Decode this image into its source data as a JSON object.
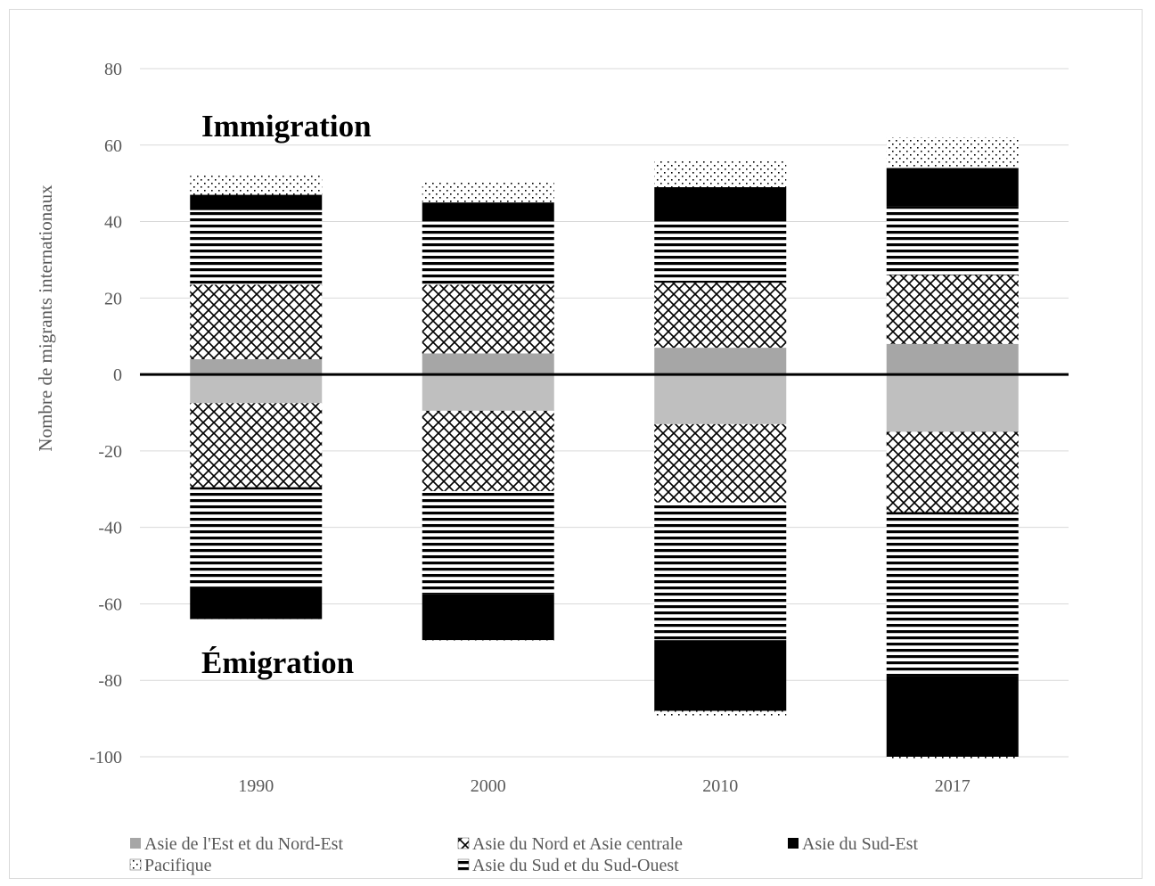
{
  "chart_data": {
    "type": "bar",
    "stacked": true,
    "categories": [
      "1990",
      "2000",
      "2010",
      "2017"
    ],
    "ylabel": "Nombre de migrants internationaux",
    "ylim": [
      -100,
      80
    ],
    "yticks": [
      80,
      60,
      40,
      20,
      0,
      -20,
      -40,
      -60,
      -80,
      -100
    ],
    "grid": true,
    "legend_position": "bottom",
    "annotations": {
      "positive": "Immigration",
      "negative": "Émigration"
    },
    "series": [
      {
        "name": "Asie de l'Est et du Nord-Est",
        "pattern": "solid-gray",
        "immigration": [
          4,
          5.5,
          7,
          8
        ],
        "emigration": [
          7.5,
          9.5,
          13,
          15
        ]
      },
      {
        "name": "Asie du Nord et Asie centrale",
        "pattern": "diamond-lattice",
        "immigration": [
          19.5,
          18,
          17,
          18
        ],
        "emigration": [
          22,
          21,
          20.5,
          21
        ]
      },
      {
        "name": "Asie du Sud et du Sud-Ouest",
        "pattern": "horizontal-stripes",
        "immigration": [
          19.5,
          16.5,
          16,
          18
        ],
        "emigration": [
          26,
          27,
          36,
          43
        ]
      },
      {
        "name": "Asie du Sud-Est",
        "pattern": "solid-black",
        "immigration": [
          4,
          5,
          9,
          10
        ],
        "emigration": [
          8.5,
          12,
          18.5,
          21
        ]
      },
      {
        "name": "Pacifique",
        "pattern": "dots",
        "immigration": [
          5,
          5.5,
          7,
          8
        ],
        "emigration": [
          0.5,
          0.5,
          1.5,
          0.5
        ]
      }
    ],
    "colors": {
      "grid": "#d9d9d9",
      "axis": "#000000",
      "gray": "#a6a6a6",
      "lightgray": "#bfbfbf",
      "black": "#000000"
    }
  }
}
